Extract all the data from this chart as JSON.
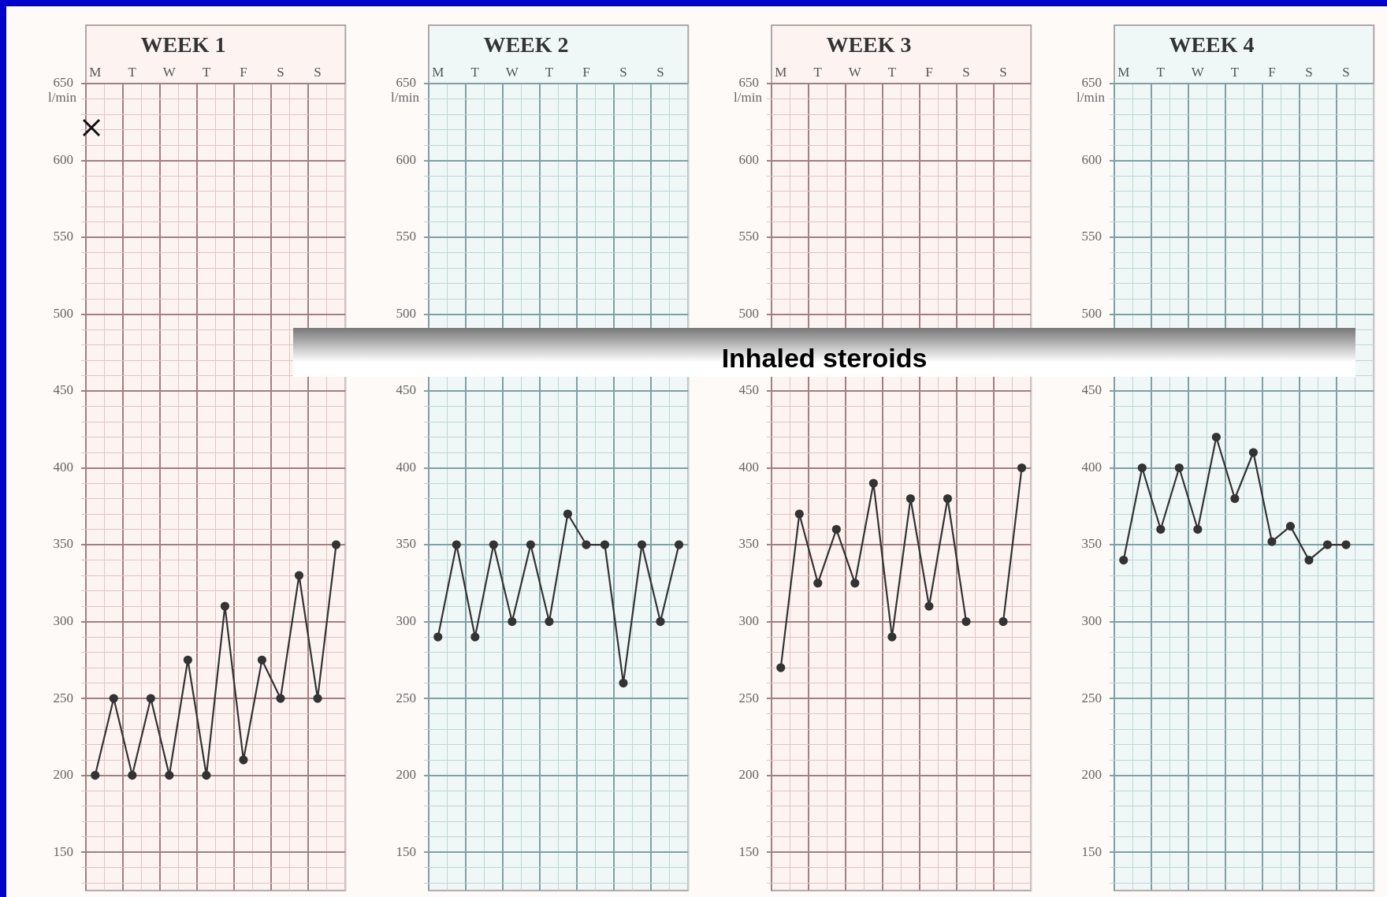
{
  "chart_data": [
    {
      "type": "line",
      "title": "WEEK 1",
      "categories": [
        "M",
        null,
        "T",
        null,
        "W",
        null,
        "T",
        null,
        "F",
        null,
        "S",
        null,
        "S",
        null
      ],
      "ylim": [
        125,
        650
      ],
      "yticks": [
        {
          "value": 130,
          "label": null
        },
        {
          "value": 140,
          "label": null
        },
        150,
        {
          "value": 160,
          "label": null
        },
        {
          "value": 170,
          "label": null
        },
        {
          "value": 180,
          "label": null
        },
        {
          "value": 190,
          "label": null
        },
        200,
        {
          "value": 210,
          "label": null
        },
        {
          "value": 220,
          "label": null
        },
        {
          "value": 230,
          "label": null
        },
        {
          "value": 240,
          "label": null
        },
        250,
        {
          "value": 260,
          "label": null
        },
        {
          "value": 270,
          "label": null
        },
        {
          "value": 280,
          "label": null
        },
        {
          "value": 290,
          "label": null
        },
        300,
        {
          "value": 310,
          "label": null
        },
        {
          "value": 320,
          "label": null
        },
        {
          "value": 330,
          "label": null
        },
        {
          "value": 340,
          "label": null
        },
        350,
        {
          "value": 360,
          "label": null
        },
        {
          "value": 370,
          "label": null
        },
        {
          "value": 380,
          "label": null
        },
        {
          "value": 390,
          "label": null
        },
        400,
        {
          "value": 410,
          "label": null
        },
        {
          "value": 420,
          "label": null
        },
        {
          "value": 430,
          "label": null
        },
        {
          "value": 440,
          "label": null
        },
        450,
        {
          "value": 460,
          "label": null
        },
        {
          "value": 470,
          "label": null
        },
        {
          "value": 480,
          "label": null
        },
        {
          "value": 490,
          "label": null
        },
        500,
        {
          "value": 510,
          "label": null
        },
        {
          "value": 520,
          "label": null
        },
        {
          "value": 530,
          "label": null
        },
        {
          "value": 540,
          "label": null
        },
        550,
        {
          "value": 560,
          "label": null
        },
        {
          "value": 570,
          "label": null
        },
        {
          "value": 580,
          "label": null
        },
        {
          "value": 590,
          "label": null
        },
        600,
        {
          "value": 610,
          "label": null
        },
        {
          "value": 620,
          "label": null
        },
        {
          "value": 630,
          "label": null
        },
        {
          "value": 640,
          "label": null
        },
        650
      ],
      "series": [
        {
          "color": "#333333",
          "values": [
            200,
            250,
            200,
            250,
            200,
            275,
            200,
            310,
            210,
            275,
            250,
            330,
            250,
            350
          ]
        }
      ],
      "marker": "circle",
      "grid": true,
      "ylabel": "l/min",
      "annotations": [
        "Inhaled steroids"
      ]
    },
    {
      "type": "line",
      "title": "WEEK 2",
      "categories": [
        "M",
        null,
        "T",
        null,
        "W",
        null,
        "T",
        null,
        "F",
        null,
        "S",
        null,
        "S",
        null
      ],
      "ylim": [
        125,
        650
      ],
      "yticks": [
        {
          "value": 130,
          "label": null
        },
        {
          "value": 140,
          "label": null
        },
        150,
        {
          "value": 160,
          "label": null
        },
        {
          "value": 170,
          "label": null
        },
        {
          "value": 180,
          "label": null
        },
        {
          "value": 190,
          "label": null
        },
        200,
        {
          "value": 210,
          "label": null
        },
        {
          "value": 220,
          "label": null
        },
        {
          "value": 230,
          "label": null
        },
        {
          "value": 240,
          "label": null
        },
        250,
        {
          "value": 260,
          "label": null
        },
        {
          "value": 270,
          "label": null
        },
        {
          "value": 280,
          "label": null
        },
        {
          "value": 290,
          "label": null
        },
        300,
        {
          "value": 310,
          "label": null
        },
        {
          "value": 320,
          "label": null
        },
        {
          "value": 330,
          "label": null
        },
        {
          "value": 340,
          "label": null
        },
        350,
        {
          "value": 360,
          "label": null
        },
        {
          "value": 370,
          "label": null
        },
        {
          "value": 380,
          "label": null
        },
        {
          "value": 390,
          "label": null
        },
        400,
        {
          "value": 410,
          "label": null
        },
        {
          "value": 420,
          "label": null
        },
        {
          "value": 430,
          "label": null
        },
        {
          "value": 440,
          "label": null
        },
        450,
        {
          "value": 460,
          "label": null
        },
        {
          "value": 470,
          "label": null
        },
        {
          "value": 480,
          "label": null
        },
        {
          "value": 490,
          "label": null
        },
        500,
        {
          "value": 510,
          "label": null
        },
        {
          "value": 520,
          "label": null
        },
        {
          "value": 530,
          "label": null
        },
        {
          "value": 540,
          "label": null
        },
        550,
        {
          "value": 560,
          "label": null
        },
        {
          "value": 570,
          "label": null
        },
        {
          "value": 580,
          "label": null
        },
        {
          "value": 590,
          "label": null
        },
        600,
        {
          "value": 610,
          "label": null
        },
        {
          "value": 620,
          "label": null
        },
        {
          "value": 630,
          "label": null
        },
        {
          "value": 640,
          "label": null
        },
        650
      ],
      "series": [
        {
          "color": "#333333",
          "values": [
            290,
            350,
            290,
            350,
            300,
            350,
            300,
            370,
            350,
            350,
            260,
            350,
            300,
            350
          ]
        }
      ],
      "marker": "circle",
      "grid": true,
      "ylabel": "l/min"
    },
    {
      "type": "line",
      "title": "WEEK 3",
      "categories": [
        "M",
        null,
        "T",
        null,
        "W",
        null,
        "T",
        null,
        "F",
        null,
        "S",
        null,
        "S",
        null
      ],
      "ylim": [
        125,
        650
      ],
      "yticks": [
        {
          "value": 130,
          "label": null
        },
        {
          "value": 140,
          "label": null
        },
        150,
        {
          "value": 160,
          "label": null
        },
        {
          "value": 170,
          "label": null
        },
        {
          "value": 180,
          "label": null
        },
        {
          "value": 190,
          "label": null
        },
        200,
        {
          "value": 210,
          "label": null
        },
        {
          "value": 220,
          "label": null
        },
        {
          "value": 230,
          "label": null
        },
        {
          "value": 240,
          "label": null
        },
        250,
        {
          "value": 260,
          "label": null
        },
        {
          "value": 270,
          "label": null
        },
        {
          "value": 280,
          "label": null
        },
        {
          "value": 290,
          "label": null
        },
        300,
        {
          "value": 310,
          "label": null
        },
        {
          "value": 320,
          "label": null
        },
        {
          "value": 330,
          "label": null
        },
        {
          "value": 340,
          "label": null
        },
        350,
        {
          "value": 360,
          "label": null
        },
        {
          "value": 370,
          "label": null
        },
        {
          "value": 380,
          "label": null
        },
        {
          "value": 390,
          "label": null
        },
        400,
        {
          "value": 410,
          "label": null
        },
        {
          "value": 420,
          "label": null
        },
        {
          "value": 430,
          "label": null
        },
        {
          "value": 440,
          "label": null
        },
        450,
        {
          "value": 460,
          "label": null
        },
        {
          "value": 470,
          "label": null
        },
        {
          "value": 480,
          "label": null
        },
        {
          "value": 490,
          "label": null
        },
        500,
        {
          "value": 510,
          "label": null
        },
        {
          "value": 520,
          "label": null
        },
        {
          "value": 530,
          "label": null
        },
        {
          "value": 540,
          "label": null
        },
        550,
        {
          "value": 560,
          "label": null
        },
        {
          "value": 570,
          "label": null
        },
        {
          "value": 580,
          "label": null
        },
        {
          "value": 590,
          "label": null
        },
        600,
        {
          "value": 610,
          "label": null
        },
        {
          "value": 620,
          "label": null
        },
        {
          "value": 630,
          "label": null
        },
        {
          "value": 640,
          "label": null
        },
        650
      ],
      "series": [
        {
          "color": "#333333",
          "values": [
            270,
            370,
            325,
            360,
            325,
            390,
            290,
            380,
            310,
            380,
            300,
            null,
            300,
            400
          ]
        }
      ],
      "marker": "circle",
      "grid": true,
      "ylabel": "l/min"
    },
    {
      "type": "line",
      "title": "WEEK 4",
      "categories": [
        "M",
        null,
        "T",
        null,
        "W",
        null,
        "T",
        null,
        "F",
        null,
        "S",
        null,
        "S",
        null
      ],
      "ylim": [
        125,
        650
      ],
      "yticks": [
        {
          "value": 130,
          "label": null
        },
        {
          "value": 140,
          "label": null
        },
        150,
        {
          "value": 160,
          "label": null
        },
        {
          "value": 170,
          "label": null
        },
        {
          "value": 180,
          "label": null
        },
        {
          "value": 190,
          "label": null
        },
        200,
        {
          "value": 210,
          "label": null
        },
        {
          "value": 220,
          "label": null
        },
        {
          "value": 230,
          "label": null
        },
        {
          "value": 240,
          "label": null
        },
        250,
        {
          "value": 260,
          "label": null
        },
        {
          "value": 270,
          "label": null
        },
        {
          "value": 280,
          "label": null
        },
        {
          "value": 290,
          "label": null
        },
        300,
        {
          "value": 310,
          "label": null
        },
        {
          "value": 320,
          "label": null
        },
        {
          "value": 330,
          "label": null
        },
        {
          "value": 340,
          "label": null
        },
        350,
        {
          "value": 360,
          "label": null
        },
        {
          "value": 370,
          "label": null
        },
        {
          "value": 380,
          "label": null
        },
        {
          "value": 390,
          "label": null
        },
        400,
        {
          "value": 410,
          "label": null
        },
        {
          "value": 420,
          "label": null
        },
        {
          "value": 430,
          "label": null
        },
        {
          "value": 440,
          "label": null
        },
        450,
        {
          "value": 460,
          "label": null
        },
        {
          "value": 470,
          "label": null
        },
        {
          "value": 480,
          "label": null
        },
        {
          "value": 490,
          "label": null
        },
        500,
        {
          "value": 510,
          "label": null
        },
        {
          "value": 520,
          "label": null
        },
        {
          "value": 530,
          "label": null
        },
        {
          "value": 540,
          "label": null
        },
        550,
        {
          "value": 560,
          "label": null
        },
        {
          "value": 570,
          "label": null
        },
        {
          "value": 580,
          "label": null
        },
        {
          "value": 590,
          "label": null
        },
        600,
        {
          "value": 610,
          "label": null
        },
        {
          "value": 620,
          "label": null
        },
        {
          "value": 630,
          "label": null
        },
        {
          "value": 640,
          "label": null
        },
        650
      ],
      "series": [
        {
          "color": "#333333",
          "values": [
            340,
            400,
            360,
            400,
            360,
            420,
            380,
            410,
            352,
            362,
            340,
            350,
            350,
            null
          ]
        }
      ],
      "marker": "circle",
      "grid": true,
      "ylabel": "l/min"
    }
  ]
}
